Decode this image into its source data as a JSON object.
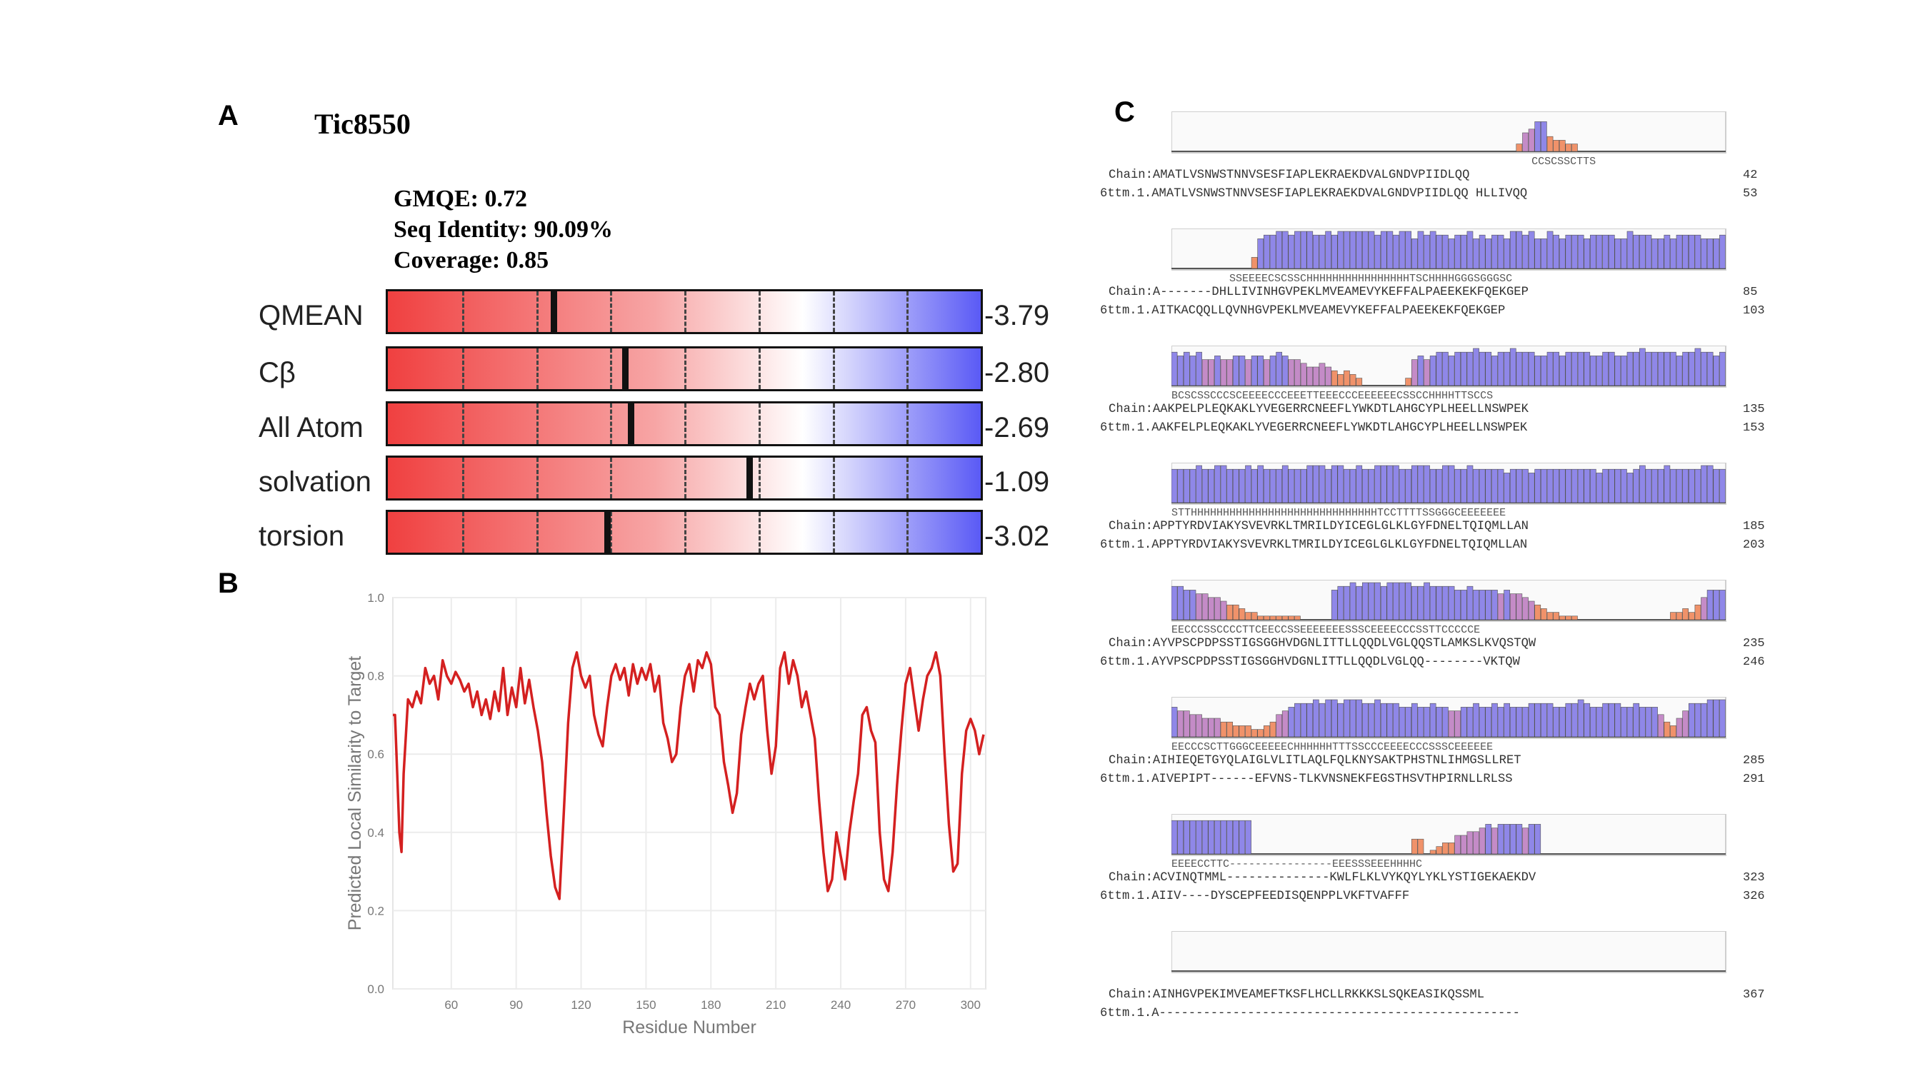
{
  "panels": {
    "a": "A",
    "b": "B",
    "c": "C"
  },
  "model_name": "Tic8550",
  "summary": {
    "gmqe": "GMQE: 0.72",
    "seq_identity": "Seq Identity: 90.09%",
    "coverage": "Coverage: 0.85"
  },
  "qmean_bars": [
    {
      "name": "QMEAN",
      "value": "-3.79",
      "marker_fraction": 0.28
    },
    {
      "name": "Cβ",
      "value": "-2.80",
      "marker_fraction": 0.4
    },
    {
      "name": "All Atom",
      "value": "-2.69",
      "marker_fraction": 0.41
    },
    {
      "name": "solvation",
      "value": "-1.09",
      "marker_fraction": 0.61
    },
    {
      "name": "torsion",
      "value": "-3.02",
      "marker_fraction": 0.37
    }
  ],
  "chart_data": {
    "type": "line",
    "xlabel": "Residue Number",
    "ylabel": "Predicted Local Similarity to Target",
    "ylim": [
      0.0,
      1.0
    ],
    "xlim": [
      33,
      307
    ],
    "y_ticks": [
      "0.0",
      "0.2",
      "0.4",
      "0.6",
      "0.8",
      "1.0"
    ],
    "x_ticks": [
      "60",
      "90",
      "120",
      "150",
      "180",
      "210",
      "240",
      "270",
      "300"
    ],
    "color": "#d42020",
    "grid": true,
    "x": [
      33,
      34,
      35,
      36,
      37,
      38,
      40,
      42,
      44,
      46,
      48,
      50,
      52,
      54,
      56,
      58,
      60,
      62,
      64,
      66,
      68,
      70,
      72,
      74,
      76,
      78,
      80,
      82,
      84,
      86,
      88,
      90,
      92,
      94,
      96,
      98,
      100,
      102,
      104,
      106,
      108,
      110,
      112,
      114,
      116,
      118,
      120,
      122,
      124,
      126,
      128,
      130,
      132,
      134,
      136,
      138,
      140,
      142,
      144,
      146,
      148,
      150,
      152,
      154,
      156,
      158,
      160,
      162,
      164,
      166,
      168,
      170,
      172,
      174,
      176,
      178,
      180,
      182,
      184,
      186,
      188,
      190,
      192,
      194,
      196,
      198,
      200,
      202,
      204,
      206,
      208,
      210,
      212,
      214,
      216,
      218,
      220,
      222,
      224,
      226,
      228,
      230,
      232,
      234,
      236,
      238,
      240,
      242,
      244,
      246,
      248,
      250,
      252,
      254,
      256,
      258,
      260,
      262,
      264,
      266,
      268,
      270,
      272,
      274,
      276,
      278,
      280,
      282,
      284,
      286,
      288,
      290,
      292,
      294,
      296,
      298,
      300,
      302,
      304,
      306
    ],
    "y": [
      0.7,
      0.7,
      0.55,
      0.4,
      0.35,
      0.55,
      0.74,
      0.72,
      0.76,
      0.73,
      0.82,
      0.78,
      0.8,
      0.74,
      0.84,
      0.8,
      0.78,
      0.81,
      0.79,
      0.76,
      0.78,
      0.72,
      0.76,
      0.7,
      0.74,
      0.69,
      0.76,
      0.71,
      0.82,
      0.7,
      0.77,
      0.72,
      0.82,
      0.73,
      0.79,
      0.72,
      0.66,
      0.58,
      0.45,
      0.34,
      0.26,
      0.23,
      0.45,
      0.68,
      0.82,
      0.86,
      0.8,
      0.77,
      0.8,
      0.7,
      0.65,
      0.62,
      0.72,
      0.8,
      0.83,
      0.79,
      0.82,
      0.75,
      0.83,
      0.78,
      0.82,
      0.79,
      0.83,
      0.76,
      0.8,
      0.68,
      0.64,
      0.58,
      0.6,
      0.72,
      0.8,
      0.83,
      0.76,
      0.84,
      0.82,
      0.86,
      0.83,
      0.72,
      0.7,
      0.58,
      0.52,
      0.45,
      0.5,
      0.65,
      0.72,
      0.78,
      0.74,
      0.78,
      0.8,
      0.66,
      0.55,
      0.62,
      0.82,
      0.86,
      0.78,
      0.84,
      0.8,
      0.72,
      0.76,
      0.7,
      0.64,
      0.48,
      0.35,
      0.25,
      0.28,
      0.4,
      0.34,
      0.28,
      0.4,
      0.48,
      0.55,
      0.7,
      0.72,
      0.66,
      0.63,
      0.4,
      0.28,
      0.25,
      0.35,
      0.52,
      0.66,
      0.78,
      0.82,
      0.74,
      0.66,
      0.74,
      0.8,
      0.82,
      0.86,
      0.8,
      0.6,
      0.42,
      0.3,
      0.32,
      0.55,
      0.66,
      0.69,
      0.66,
      0.6,
      0.65
    ]
  },
  "alignment_rows": [
    {
      "ss": "                                                        CCSCSSCTTS       ",
      "chain": "Chain:AMATLVSNWSTNNVSESFIAPLEKRAEKDVALGNDVPIIDLQQ",
      "chain_num": "42",
      "tmpl": "6ttm.1.AMATLVSNWSTNNVSESFIAPLEKRAEKDVALGNDVPIIDLQQ HLLIVQQ",
      "tmpl_num": "53",
      "profile": [
        0,
        0,
        0,
        0,
        0,
        0,
        0,
        0,
        0,
        0,
        0,
        0,
        0,
        0,
        0,
        0,
        0,
        0,
        0,
        0,
        0,
        0,
        0,
        0,
        0,
        0,
        0,
        0,
        0,
        0,
        0,
        0,
        0,
        0,
        0,
        0,
        0,
        0,
        0,
        0,
        0,
        0,
        0,
        0,
        0,
        0,
        0,
        0,
        0,
        0,
        0,
        0,
        0,
        0,
        0,
        0,
        0.2,
        0.5,
        0.6,
        0.8,
        0.8,
        0.4,
        0.3,
        0.3,
        0.2,
        0.2,
        0,
        0,
        0,
        0,
        0,
        0,
        0,
        0,
        0,
        0,
        0,
        0,
        0,
        0,
        0,
        0,
        0,
        0,
        0,
        0,
        0,
        0,
        0,
        0
      ]
    },
    {
      "ss": "         SSEEEECSCSSCHHHHHHHHHHHHHHHHTSCHHHHGGGSGGGSC",
      "chain": "Chain:A-------DHLLIVINHGVPEKLMVEAMEVYKEFFALPAEEKEKFQEKGEP",
      "chain_num": "85",
      "tmpl": "6ttm.1.AITKACQQLLQVNHGVPEKLMVEAMEVYKEFFALPAEEKEKFQEKGEP",
      "tmpl_num": "103",
      "profile": [
        0,
        0,
        0,
        0,
        0,
        0,
        0,
        0,
        0,
        0,
        0,
        0,
        0,
        0.3,
        0.8,
        0.9,
        0.9,
        1,
        1,
        0.9,
        1,
        1,
        1,
        0.9,
        0.9,
        1,
        0.9,
        1,
        1,
        1,
        1,
        1,
        1,
        0.9,
        1,
        1,
        0.9,
        1,
        1,
        0.8,
        1,
        0.9,
        1,
        0.9,
        0.9,
        0.8,
        0.9,
        0.9,
        1,
        0.8,
        0.9,
        0.8,
        0.9,
        0.9,
        0.8,
        1,
        1,
        0.9,
        1,
        0.8,
        0.8,
        1,
        0.9,
        0.8,
        0.9,
        0.9,
        0.9,
        0.8,
        0.9,
        0.9,
        0.9,
        0.9,
        0.8,
        0.8,
        1,
        0.9,
        0.9,
        0.9,
        0.8,
        0.8,
        0.9,
        0.8,
        0.9,
        0.9,
        0.9,
        0.9,
        0.8,
        0.8,
        0.8,
        0.9
      ]
    },
    {
      "ss": "BCSCSSCCCSCEEEECCCEEETTEEECCCEEEEEECSSCCHHHHTTSCCS",
      "chain": "Chain:AAKPELPLEQKAKLYVEGERRCNEEFLYWKDTLAHGCYPLHEELLNSWPEK",
      "chain_num": "135",
      "tmpl": "6ttm.1.AAKFELPLEQKAKLYVEGERRCNEEFLYWKDTLAHGCYPLHEELLNSWPEK",
      "tmpl_num": "153",
      "profile": [
        0.9,
        0.8,
        0.9,
        0.8,
        0.9,
        0.7,
        0.7,
        0.8,
        0.7,
        0.7,
        0.8,
        0.8,
        0.7,
        0.8,
        0.8,
        0.7,
        0.8,
        0.9,
        0.8,
        0.7,
        0.7,
        0.6,
        0.5,
        0.5,
        0.6,
        0.5,
        0.4,
        0.3,
        0.4,
        0.3,
        0.2,
        0,
        0,
        0,
        0,
        0,
        0,
        0,
        0.2,
        0.7,
        0.8,
        0.7,
        0.8,
        0.9,
        0.9,
        0.8,
        0.9,
        0.9,
        0.9,
        1,
        0.9,
        0.9,
        0.8,
        0.9,
        0.9,
        1,
        0.9,
        0.9,
        0.9,
        0.8,
        0.8,
        0.9,
        0.9,
        0.8,
        0.9,
        0.9,
        0.9,
        0.9,
        0.8,
        0.8,
        0.9,
        0.9,
        0.8,
        0.8,
        0.9,
        0.9,
        1,
        0.9,
        0.9,
        0.9,
        0.9,
        0.9,
        0.8,
        0.9,
        0.9,
        1,
        0.9,
        0.9,
        0.8,
        0.9
      ]
    },
    {
      "ss": "STTHHHHHHHHHHHHHHHHHHHHHHHHHHHHHTCCTTTTSSGGGCEEEEEEE",
      "chain": "Chain:APPTYRDVIAKYSVEVRKLTMRILDYICEGLGLKLGYFDNELTQIQMLLAN",
      "chain_num": "185",
      "tmpl": "6ttm.1.APPTYRDVIAKYSVEVRKLTMRILDYICEGLGLKLGYFDNELTQIQMLLAN",
      "tmpl_num": "203",
      "profile": [
        0.9,
        0.9,
        0.9,
        0.9,
        1,
        0.9,
        0.9,
        1,
        1,
        0.9,
        0.9,
        0.9,
        1,
        0.9,
        1,
        0.9,
        0.9,
        0.9,
        1,
        0.9,
        0.9,
        0.9,
        1,
        1,
        1,
        0.9,
        1,
        1,
        0.9,
        0.9,
        1,
        0.9,
        0.9,
        1,
        1,
        1,
        1,
        0.9,
        0.9,
        1,
        1,
        1,
        0.9,
        0.9,
        1,
        1,
        0.9,
        0.9,
        1,
        0.9,
        0.9,
        0.9,
        0.9,
        0.9,
        0.8,
        0.9,
        0.9,
        0.9,
        0.8,
        0.9,
        0.9,
        0.9,
        0.9,
        0.9,
        0.9,
        0.9,
        0.9,
        0.9,
        0.9,
        0.8,
        0.9,
        0.9,
        0.9,
        0.9,
        0.8,
        0.9,
        1,
        0.9,
        0.9,
        0.9,
        1,
        0.9,
        0.9,
        0.9,
        0.9,
        0.9,
        1,
        1,
        0.9,
        0.9
      ]
    },
    {
      "ss": "EECCCSSCCCCTTCEECCSSEEEEEEESSSCEEEECCCSSTTCCCCCE",
      "chain": "Chain:AYVPSCPDPSSTIGSGGHVDGNLITTLLQQDLVGLQQSTLAMKSLKVQSTQW",
      "chain_num": "235",
      "tmpl": "6ttm.1.AYVPSCPDPSSTIGSGGHVDGNLITTLLQQDLVGLQQ--------VKTQW",
      "tmpl_num": "246",
      "profile": [
        0.9,
        0.9,
        0.8,
        0.8,
        0.7,
        0.7,
        0.6,
        0.6,
        0.5,
        0.4,
        0.4,
        0.3,
        0.2,
        0.2,
        0.1,
        0.1,
        0.1,
        0.1,
        0.1,
        0.1,
        0.1,
        0,
        0,
        0,
        0,
        0,
        0.8,
        0.9,
        0.9,
        1,
        0.9,
        1,
        1,
        1,
        0.9,
        1,
        1,
        1,
        1,
        0.9,
        0.9,
        1,
        0.9,
        0.9,
        0.9,
        0.9,
        0.8,
        0.8,
        0.9,
        0.8,
        0.8,
        0.8,
        0.8,
        0.7,
        0.8,
        0.7,
        0.7,
        0.6,
        0.5,
        0.4,
        0.3,
        0.2,
        0.2,
        0.1,
        0.1,
        0.1,
        0,
        0,
        0,
        0,
        0,
        0,
        0,
        0,
        0,
        0,
        0,
        0,
        0,
        0,
        0,
        0.2,
        0.2,
        0.3,
        0.2,
        0.4,
        0.6,
        0.8,
        0.8,
        0.8
      ]
    },
    {
      "ss": "EECCCSCTTGGGCEEEEECHHHHHHTTTSSCCCEEEECCCSSSCEEEEEE",
      "chain": "Chain:AIHIEQETGYQLAIGLVLITLAQLFQLKNYSAKTPHSTNLIHMGSLLRET",
      "chain_num": "285",
      "tmpl": "6ttm.1.AIVEPIPT------EFVNS-TLKVNSNEKFEGSTHSVTHPIRNLLRLSS",
      "tmpl_num": "291",
      "profile": [
        0.8,
        0.7,
        0.7,
        0.6,
        0.6,
        0.5,
        0.5,
        0.5,
        0.4,
        0.4,
        0.3,
        0.3,
        0.3,
        0.2,
        0.2,
        0.3,
        0.4,
        0.6,
        0.7,
        0.8,
        0.9,
        0.9,
        0.9,
        1,
        0.9,
        1,
        1,
        0.9,
        1,
        1,
        1,
        0.9,
        0.9,
        1,
        0.9,
        0.9,
        0.9,
        0.8,
        0.8,
        0.9,
        0.8,
        0.8,
        0.9,
        0.8,
        0.8,
        0.7,
        0.7,
        0.8,
        0.8,
        0.9,
        0.8,
        0.8,
        0.9,
        0.8,
        0.9,
        0.8,
        0.8,
        0.8,
        0.9,
        0.9,
        0.9,
        0.9,
        0.8,
        0.8,
        0.9,
        0.9,
        1,
        0.9,
        0.8,
        0.8,
        0.9,
        0.9,
        0.9,
        0.8,
        0.8,
        0.9,
        0.8,
        0.8,
        0.8,
        0.6,
        0.4,
        0.3,
        0.5,
        0.7,
        0.9,
        0.9,
        0.9,
        1,
        1,
        1
      ]
    },
    {
      "ss": "EEEECCTTC----------------EEESSSEEEHHHHC",
      "chain": "Chain:ACVINQTMML--------------KWLFLKLVYKQYLYKLYSTIGEKAEKDV",
      "chain_num": "323",
      "tmpl": "6ttm.1.AIIV----DYSCEPFEEDISQENPPLVKFTVAFFF",
      "tmpl_num": "326",
      "profile": [
        0.9,
        0.9,
        0.9,
        0.9,
        0.9,
        0.9,
        0.9,
        0.9,
        0.9,
        0.9,
        0.9,
        0.9,
        0.9,
        0,
        0,
        0,
        0,
        0,
        0,
        0,
        0,
        0,
        0,
        0,
        0,
        0,
        0,
        0,
        0,
        0,
        0,
        0,
        0,
        0,
        0,
        0,
        0,
        0,
        0,
        0.4,
        0.4,
        0,
        0.1,
        0.2,
        0.3,
        0.3,
        0.5,
        0.5,
        0.6,
        0.6,
        0.7,
        0.8,
        0.7,
        0.8,
        0.8,
        0.8,
        0.8,
        0.7,
        0.8,
        0.8,
        0,
        0,
        0,
        0,
        0,
        0,
        0,
        0,
        0,
        0,
        0,
        0,
        0,
        0,
        0,
        0,
        0,
        0,
        0,
        0,
        0,
        0,
        0,
        0,
        0,
        0,
        0,
        0,
        0,
        0
      ]
    },
    {
      "ss": "",
      "chain": "Chain:AINHGVPEKIMVEAMEFTKSFLHCLLRKKKSLSQKEASIKQSSML",
      "chain_num": "367",
      "tmpl": "6ttm.1.A-------------------------------------------------",
      "tmpl_num": "",
      "profile": []
    }
  ]
}
